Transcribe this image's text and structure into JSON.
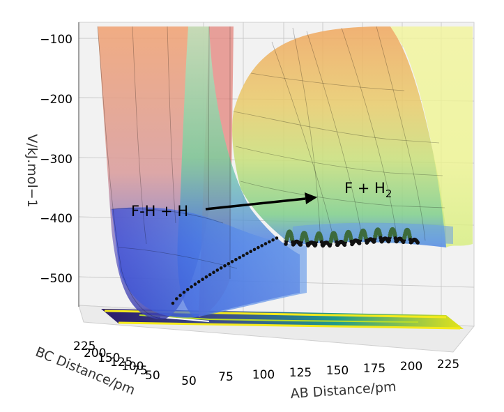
{
  "chart_data": {
    "type": "surface",
    "zlabel": "V/kJ.mol−1",
    "xlabel": "AB Distance/pm",
    "ylabel": "BC Distance/pm",
    "z_ticks": [
      "−100",
      "−200",
      "−300",
      "−400",
      "−500"
    ],
    "z_tick_values": [
      -100,
      -200,
      -300,
      -400,
      -500
    ],
    "x_ticks": [
      "50",
      "75",
      "100",
      "125",
      "150",
      "175",
      "200",
      "225"
    ],
    "x_tick_values": [
      50,
      75,
      100,
      125,
      150,
      175,
      200,
      225
    ],
    "y_ticks": [
      "225",
      "200",
      "150",
      "125",
      "100",
      "75",
      "50"
    ],
    "y_tick_values": [
      225,
      200,
      150,
      125,
      100,
      75,
      50
    ],
    "zlim": [
      -560,
      -90
    ],
    "xlim": [
      50,
      240
    ],
    "annotations": {
      "reactant": "F-H + H",
      "product_prefix": "F + H",
      "product_subscript": "2"
    },
    "trajectory": {
      "description_points": [
        [
          -190,
          -550
        ],
        [
          -150,
          -520
        ],
        [
          -120,
          -490
        ],
        [
          -95,
          -470
        ],
        [
          -80,
          -462
        ],
        [
          -70,
          -458
        ],
        [
          -60,
          -456
        ],
        [
          -50,
          -455
        ]
      ]
    },
    "colors": {
      "trajectory": "#111111",
      "trajectory_green": "#3d6b3d",
      "arrow": "#000000"
    }
  }
}
